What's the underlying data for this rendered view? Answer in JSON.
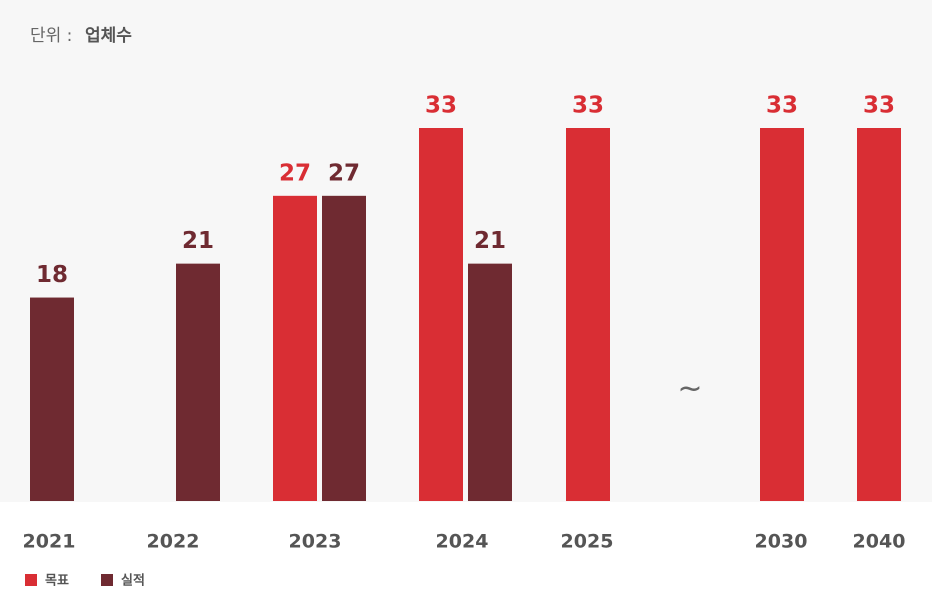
{
  "chart_data": {
    "type": "bar",
    "unit_label": "단위 :",
    "unit": "업체수",
    "categories": [
      "2021",
      "2022",
      "2023",
      "2024",
      "2025",
      null,
      "2030",
      "2040"
    ],
    "break_mark": "~",
    "series": [
      {
        "name": "목표",
        "color": "#d92e34",
        "values": [
          null,
          null,
          27,
          33,
          33,
          null,
          33,
          33
        ]
      },
      {
        "name": "실적",
        "color": "#6f2a31",
        "values": [
          18,
          21,
          27,
          21,
          null,
          null,
          null,
          null
        ]
      }
    ]
  }
}
